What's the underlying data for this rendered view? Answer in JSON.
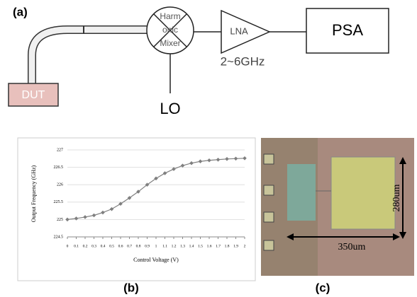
{
  "diagram": {
    "label": "(a)",
    "dut": "DUT",
    "mixer": [
      "Harm",
      "onic",
      "Mixer"
    ],
    "lna": "LNA",
    "lna_band": "2~6GHz",
    "psa": "PSA",
    "lo": "LO"
  },
  "chart_data": {
    "type": "line",
    "label": "(b)",
    "x_label": "Control Voltage (V)",
    "y_label": "Output Frequency (GHz)",
    "x": [
      0,
      0.1,
      0.2,
      0.3,
      0.4,
      0.5,
      0.6,
      0.7,
      0.8,
      0.9,
      1,
      1.1,
      1.2,
      1.3,
      1.4,
      1.5,
      1.6,
      1.7,
      1.8,
      1.9,
      2
    ],
    "series": [
      {
        "color": "#7f7f7f",
        "values": [
          225,
          225.03,
          225.07,
          225.12,
          225.2,
          225.3,
          225.45,
          225.62,
          225.8,
          226,
          226.18,
          226.33,
          226.45,
          226.55,
          226.62,
          226.67,
          226.7,
          226.72,
          226.74,
          226.75,
          226.76
        ]
      }
    ],
    "xlim": [
      0,
      2
    ],
    "xticks": [
      0,
      0.1,
      0.2,
      0.3,
      0.4,
      0.5,
      0.6,
      0.7,
      0.8,
      0.9,
      1,
      1.1,
      1.2,
      1.3,
      1.4,
      1.5,
      1.6,
      1.7,
      1.8,
      1.9,
      2
    ],
    "ylim": [
      224.5,
      227
    ],
    "yticks": [
      224.5,
      225,
      225.5,
      226,
      226.5,
      227
    ],
    "grid": true
  },
  "photo": {
    "label": "(c)",
    "height_label": "280um",
    "width_label": "350um"
  }
}
